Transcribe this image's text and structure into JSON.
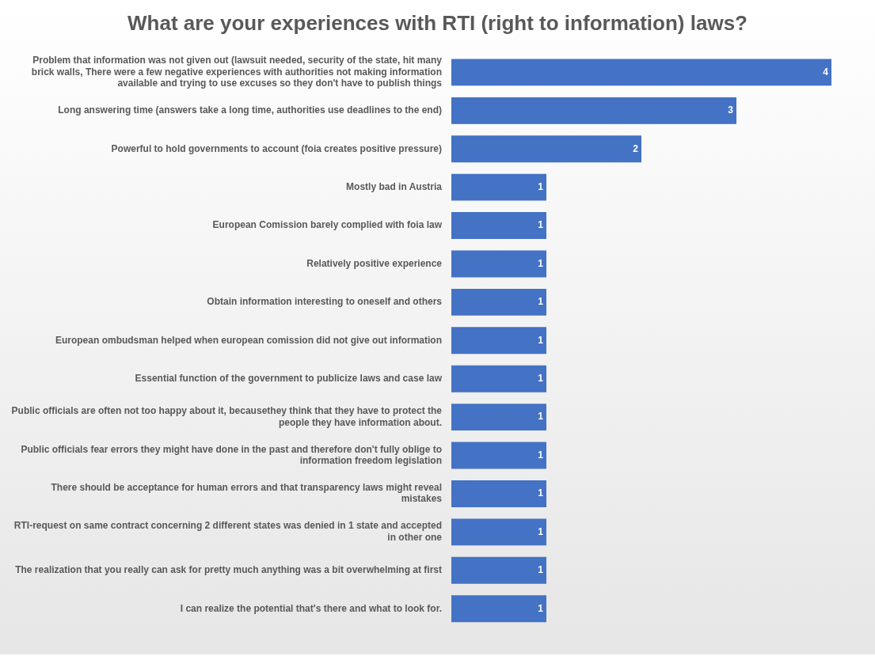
{
  "chart_data": {
    "type": "bar",
    "orientation": "horizontal",
    "title": "What are your experiences with RTI (right to information) laws?",
    "categories": [
      "Problem that information was not given out (lawsuit needed, security of the state, hit many brick walls, There were a few negative experiences with authorities not making information available and trying to use excuses so they don't have to publish things",
      "Long answering time (answers take a long time, authorities use deadlines to the end)",
      "Powerful to hold governments to account (foia creates positive pressure)",
      "Mostly bad in Austria",
      "European Comission barely complied with foia law",
      "Relatively positive experience",
      "Obtain information interesting to oneself and others",
      "European ombudsman helped when european comission did not give out information",
      "Essential function of the government to publicize laws and case law",
      "Public officials are often not too happy about it, becausethey think that they have to protect the people they have information about.",
      "Public officials fear errors they might have done in the past and therefore don't fully oblige to information freedom legislation",
      "There should be acceptance for human errors and that transparency laws might reveal mistakes",
      "RTI-request on same contract concerning 2 different states was denied in 1 state and accepted in other one",
      "The realization that you really can ask for pretty much anything was a bit overwhelming at first",
      "I can realize the potential that's there and what to look for."
    ],
    "values": [
      4,
      3,
      2,
      1,
      1,
      1,
      1,
      1,
      1,
      1,
      1,
      1,
      1,
      1,
      1
    ],
    "color": "#4472c4",
    "data_labels": true,
    "grid": false,
    "legend": false,
    "tick_labels": "y"
  }
}
